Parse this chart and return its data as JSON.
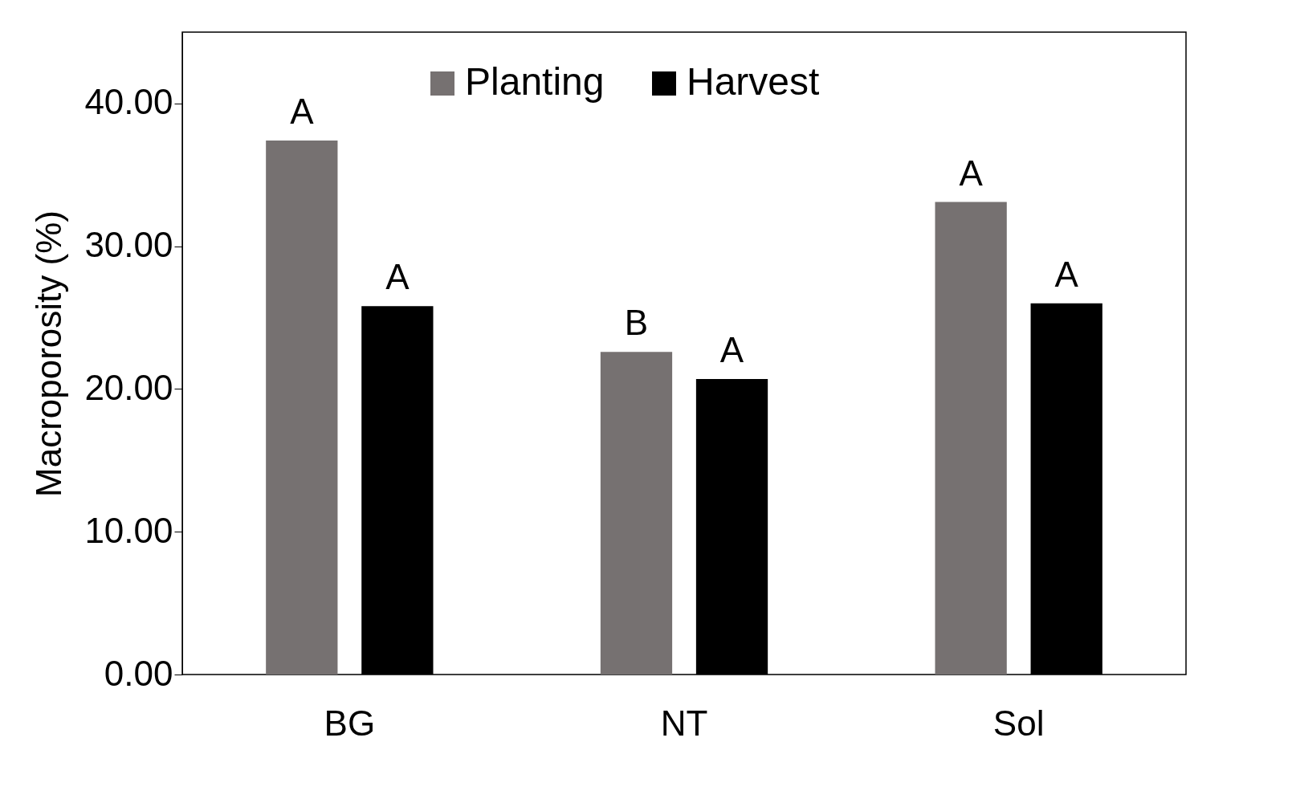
{
  "chart_data": {
    "type": "bar",
    "ylabel": "Macroporosity (%)",
    "categories": [
      "BG",
      "NT",
      "Sol"
    ],
    "series": [
      {
        "name": "Planting",
        "color": "#767171",
        "values": [
          37.4,
          22.6,
          33.1
        ],
        "value_labels": [
          "A",
          "B",
          "A"
        ]
      },
      {
        "name": "Harvest",
        "color": "#000000",
        "values": [
          25.8,
          20.7,
          26.0
        ],
        "value_labels": [
          "A",
          "A",
          "A"
        ]
      }
    ],
    "ylim": [
      0,
      45
    ],
    "yticks": [
      {
        "value": 0,
        "label": "0.00"
      },
      {
        "value": 10,
        "label": "10.00"
      },
      {
        "value": 20,
        "label": "20.00"
      },
      {
        "value": 30,
        "label": "30.00"
      },
      {
        "value": 40,
        "label": "40.00"
      }
    ],
    "legend": "top",
    "grid": false
  }
}
